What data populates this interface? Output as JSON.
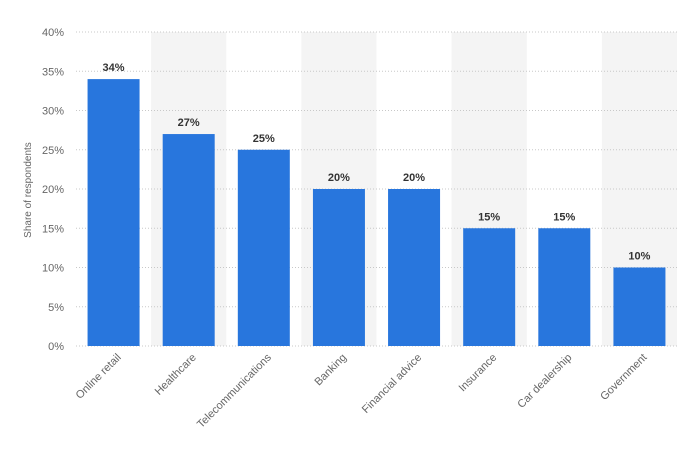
{
  "chart_data": {
    "type": "bar",
    "categories": [
      "Online retail",
      "Healthcare",
      "Telecommunications",
      "Banking",
      "Financial advice",
      "Insurance",
      "Car dealership",
      "Government"
    ],
    "values": [
      34,
      27,
      25,
      20,
      20,
      15,
      15,
      10
    ],
    "data_labels": [
      "34%",
      "27%",
      "25%",
      "20%",
      "20%",
      "15%",
      "15%",
      "10%"
    ],
    "ylabel": "Share of respondents",
    "xlabel": "",
    "ylim": [
      0,
      40
    ],
    "yticks": [
      0,
      5,
      10,
      15,
      20,
      25,
      30,
      35,
      40
    ],
    "ytick_labels": [
      "0%",
      "5%",
      "10%",
      "15%",
      "20%",
      "25%",
      "30%",
      "35%",
      "40%"
    ],
    "grid": true,
    "legend": "none",
    "colors": {
      "bar": "#2876dd",
      "band": "#f4f4f4",
      "grid": "#c8c8c8"
    }
  }
}
